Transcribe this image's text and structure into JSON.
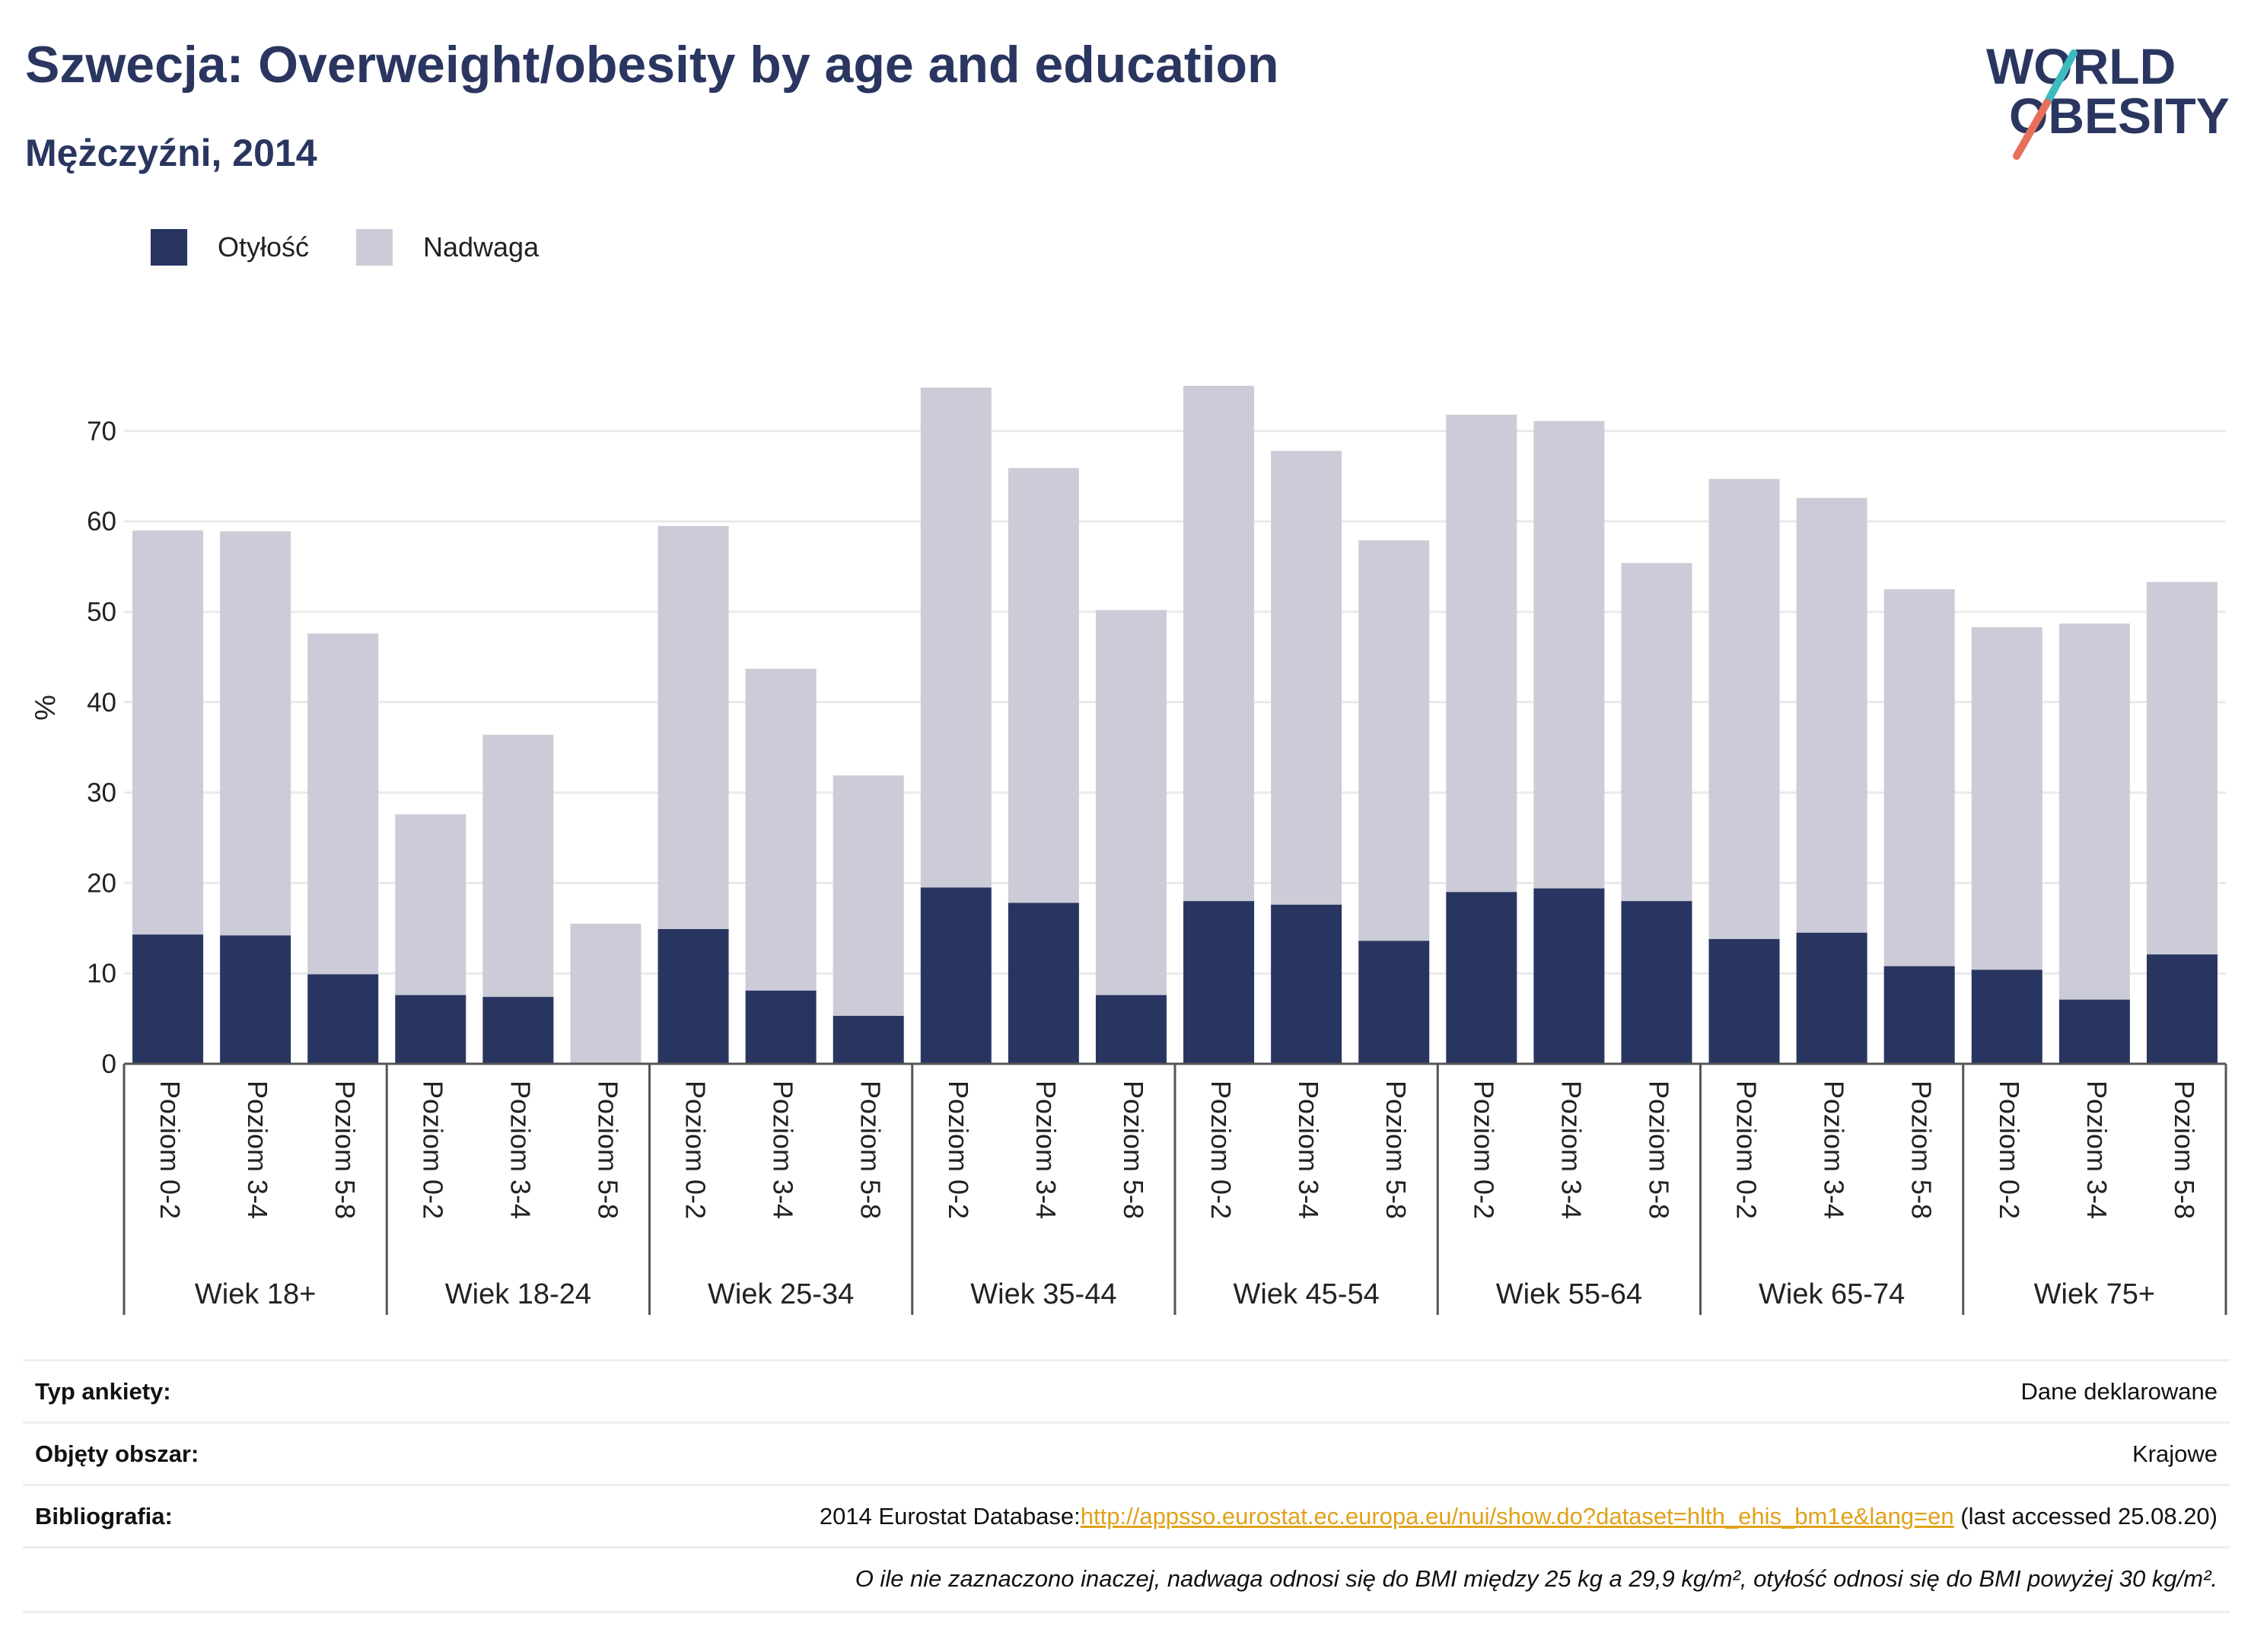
{
  "header": {
    "title": "Szwecja: Overweight/obesity by age and education",
    "subtitle": "Mężczyźni, 2014"
  },
  "logo": {
    "line1": "WORLD",
    "line2": "OBESITY"
  },
  "colors": {
    "obesity": "#293561",
    "overweight": "#cbccd7",
    "axis": "#555555",
    "grid": "#eaeaea",
    "title": "#2a3660",
    "link": "#e0a21a",
    "logo_teal": "#3cbcbe",
    "logo_coral": "#e8705a"
  },
  "chart_data": {
    "type": "bar",
    "stacked": true,
    "ylabel": "%",
    "ylim": [
      0,
      75
    ],
    "yticks": [
      0,
      10,
      20,
      30,
      40,
      50,
      60,
      70
    ],
    "grid": true,
    "legend_position": "top-left",
    "groups": [
      "Wiek 18+",
      "Wiek 18-24",
      "Wiek 25-34",
      "Wiek 35-44",
      "Wiek 45-54",
      "Wiek 55-64",
      "Wiek 65-74",
      "Wiek 75+"
    ],
    "subcategories": [
      "Poziom 0-2",
      "Poziom 3-4",
      "Poziom 5-8"
    ],
    "series": [
      {
        "name": "Otyłość",
        "color": "#293561",
        "values": [
          14.3,
          14.2,
          9.9,
          7.6,
          7.4,
          0,
          14.9,
          8.1,
          5.3,
          19.5,
          17.8,
          7.6,
          18.0,
          17.6,
          13.6,
          19.0,
          19.4,
          18.0,
          13.8,
          14.5,
          10.8,
          10.4,
          7.1,
          12.1
        ]
      },
      {
        "name": "Nadwaga",
        "color": "#cbccd7",
        "values": [
          44.7,
          44.7,
          37.7,
          20.0,
          29.0,
          15.5,
          44.6,
          35.6,
          26.6,
          55.3,
          48.1,
          42.6,
          57.0,
          50.2,
          44.3,
          52.8,
          51.7,
          37.4,
          50.9,
          48.1,
          41.7,
          37.9,
          41.6,
          41.2
        ]
      }
    ]
  },
  "meta": {
    "rows": [
      {
        "key": "Typ ankiety:",
        "value": "Dane deklarowane"
      },
      {
        "key": "Objęty obszar:",
        "value": "Krajowe"
      },
      {
        "key": "Bibliografia:",
        "value_prefix": "2014 Eurostat Database:",
        "link": "http://appsso.eurostat.ec.europa.eu/nui/show.do?dataset=hlth_ehis_bm1e&lang=en",
        "value_suffix": " (last accessed 25.08.20)"
      }
    ],
    "note": "O ile nie zaznaczono inaczej, nadwaga odnosi się do BMI między 25 kg a 29,9 kg/m², otyłość odnosi się do BMI powyżej 30 kg/m²."
  }
}
